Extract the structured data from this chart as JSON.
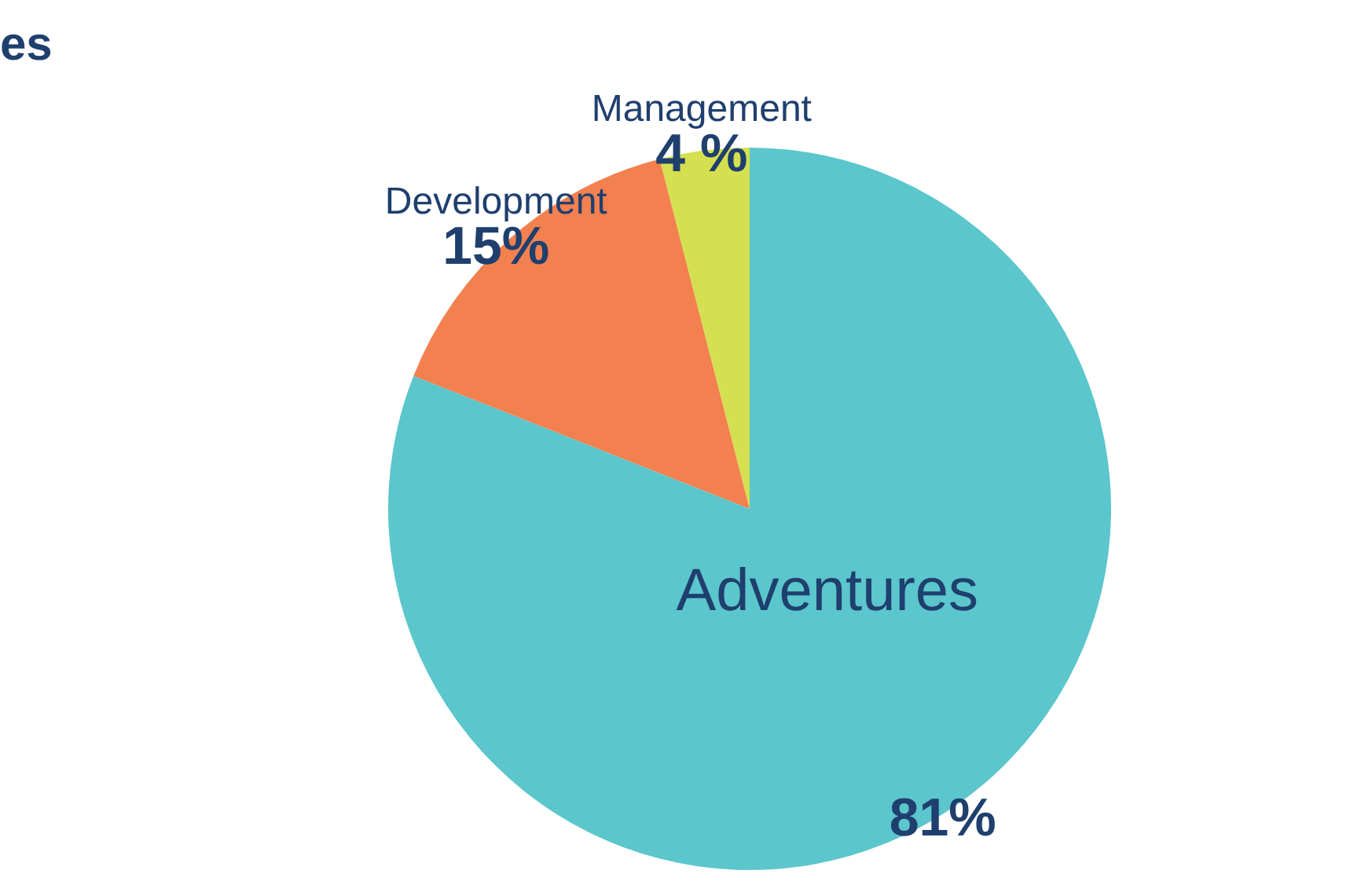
{
  "chart_data": {
    "type": "pie",
    "title": "es",
    "categories": [
      "Adventures",
      "Development",
      "Management"
    ],
    "values": [
      81,
      15,
      4
    ],
    "colors": [
      "#5bc6cc",
      "#f3804f",
      "#d4e04f"
    ],
    "value_labels": [
      "81%",
      "15%",
      "4 %"
    ]
  }
}
